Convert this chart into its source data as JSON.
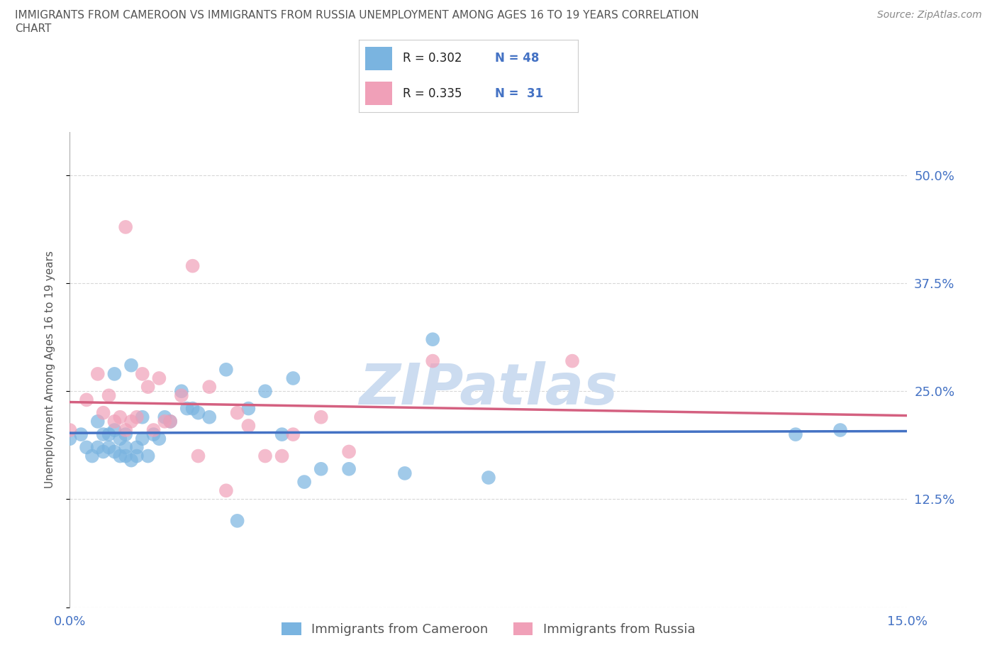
{
  "title_line1": "IMMIGRANTS FROM CAMEROON VS IMMIGRANTS FROM RUSSIA UNEMPLOYMENT AMONG AGES 16 TO 19 YEARS CORRELATION",
  "title_line2": "CHART",
  "source_text": "Source: ZipAtlas.com",
  "ylabel": "Unemployment Among Ages 16 to 19 years",
  "xlim": [
    0.0,
    0.15
  ],
  "ylim": [
    0.0,
    0.55
  ],
  "ytick_positions": [
    0.0,
    0.125,
    0.25,
    0.375,
    0.5
  ],
  "ytick_labels": [
    "",
    "12.5%",
    "25.0%",
    "37.5%",
    "50.0%"
  ],
  "grid_color": "#d8d8d8",
  "background_color": "#ffffff",
  "title_color": "#555555",
  "axis_label_color": "#555555",
  "tick_label_color": "#4472c4",
  "watermark_text": "ZIPatlas",
  "watermark_color": "#ccdcf0",
  "color_cameroon": "#7ab4e0",
  "color_russia": "#f0a0b8",
  "line_color_cameroon": "#4472c4",
  "line_color_russia": "#d46080",
  "cameroon_x": [
    0.0,
    0.002,
    0.003,
    0.004,
    0.005,
    0.005,
    0.006,
    0.006,
    0.007,
    0.007,
    0.008,
    0.008,
    0.008,
    0.009,
    0.009,
    0.01,
    0.01,
    0.01,
    0.011,
    0.011,
    0.012,
    0.012,
    0.013,
    0.013,
    0.014,
    0.015,
    0.016,
    0.017,
    0.018,
    0.02,
    0.021,
    0.022,
    0.023,
    0.025,
    0.028,
    0.03,
    0.032,
    0.035,
    0.038,
    0.04,
    0.042,
    0.045,
    0.05,
    0.06,
    0.065,
    0.075,
    0.13,
    0.138
  ],
  "cameroon_y": [
    0.195,
    0.2,
    0.185,
    0.175,
    0.215,
    0.185,
    0.2,
    0.18,
    0.2,
    0.185,
    0.205,
    0.27,
    0.18,
    0.195,
    0.175,
    0.2,
    0.185,
    0.175,
    0.28,
    0.17,
    0.185,
    0.175,
    0.22,
    0.195,
    0.175,
    0.2,
    0.195,
    0.22,
    0.215,
    0.25,
    0.23,
    0.23,
    0.225,
    0.22,
    0.275,
    0.1,
    0.23,
    0.25,
    0.2,
    0.265,
    0.145,
    0.16,
    0.16,
    0.155,
    0.31,
    0.15,
    0.2,
    0.205
  ],
  "russia_x": [
    0.0,
    0.003,
    0.005,
    0.006,
    0.007,
    0.008,
    0.009,
    0.01,
    0.01,
    0.011,
    0.012,
    0.013,
    0.014,
    0.015,
    0.016,
    0.017,
    0.018,
    0.02,
    0.022,
    0.023,
    0.025,
    0.028,
    0.03,
    0.032,
    0.035,
    0.038,
    0.04,
    0.045,
    0.05,
    0.065,
    0.09
  ],
  "russia_y": [
    0.205,
    0.24,
    0.27,
    0.225,
    0.245,
    0.215,
    0.22,
    0.205,
    0.44,
    0.215,
    0.22,
    0.27,
    0.255,
    0.205,
    0.265,
    0.215,
    0.215,
    0.245,
    0.395,
    0.175,
    0.255,
    0.135,
    0.225,
    0.21,
    0.175,
    0.175,
    0.2,
    0.22,
    0.18,
    0.285,
    0.285
  ]
}
